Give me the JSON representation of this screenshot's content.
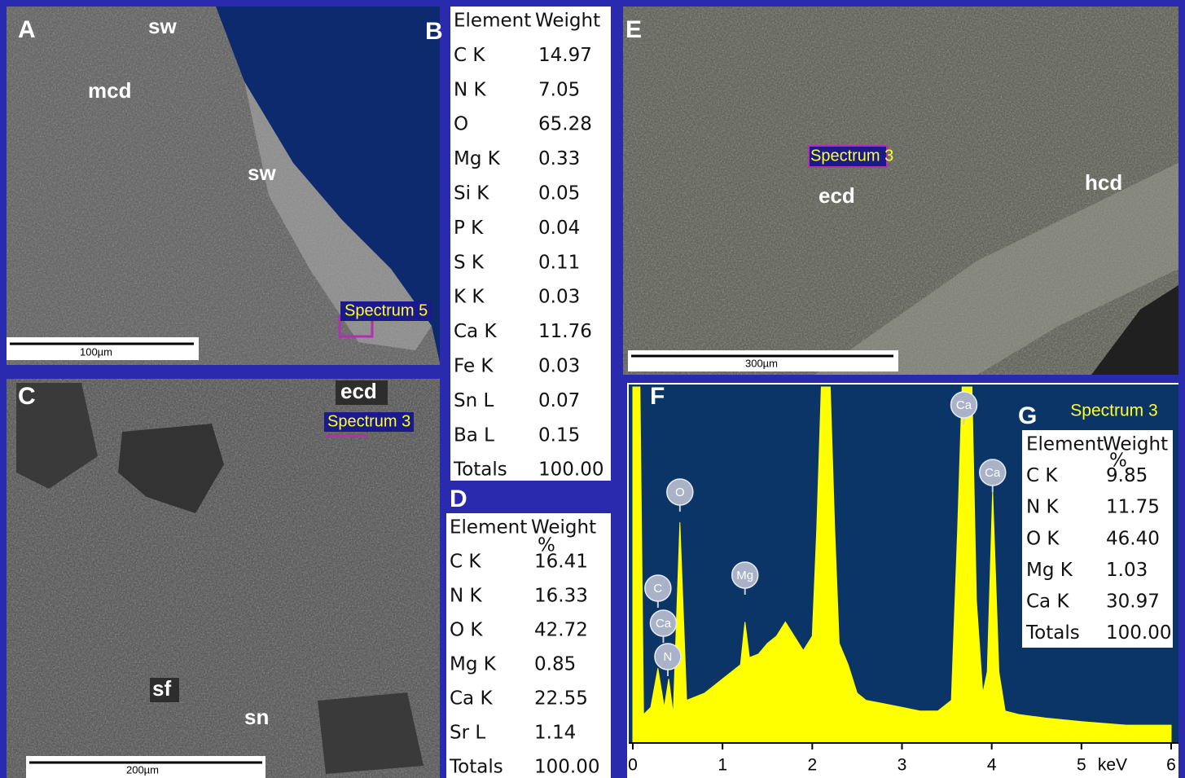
{
  "panels": {
    "a": {
      "label": "A",
      "annotations": [
        "sw",
        "mcd",
        "sw"
      ],
      "spectrum": "Spectrum 5",
      "scale_bar": "100µm"
    },
    "b": {
      "label": "B",
      "table": {
        "header": [
          "Element",
          "Weight"
        ],
        "rows": [
          [
            "C K",
            "14.97"
          ],
          [
            "N K",
            "7.05"
          ],
          [
            "O",
            "65.28"
          ],
          [
            "Mg K",
            "0.33"
          ],
          [
            "Si K",
            "0.05"
          ],
          [
            "P K",
            "0.04"
          ],
          [
            "S K",
            "0.11"
          ],
          [
            "K K",
            "0.03"
          ],
          [
            "Ca K",
            "11.76"
          ],
          [
            "Fe K",
            "0.03"
          ],
          [
            "Sn L",
            "0.07"
          ],
          [
            "Ba L",
            "0.15"
          ],
          [
            "Totals",
            "100.00"
          ]
        ]
      }
    },
    "c": {
      "label": "C",
      "annotations": [
        "ecd",
        "sf",
        "sn"
      ],
      "spectrum": "Spectrum 3",
      "scale_bar": "200µm"
    },
    "d": {
      "label": "D",
      "table": {
        "header": [
          "Element",
          "Weight",
          "%"
        ],
        "rows": [
          [
            "C K",
            "16.41"
          ],
          [
            "N K",
            "16.33"
          ],
          [
            "O K",
            "42.72"
          ],
          [
            "Mg K",
            "0.85"
          ],
          [
            "Ca K",
            "22.55"
          ],
          [
            "Sr L",
            "1.14"
          ],
          [
            "Totals",
            "100.00"
          ]
        ]
      }
    },
    "e": {
      "label": "E",
      "annotations": [
        "ecd",
        "hcd"
      ],
      "spectrum": "Spectrum 3",
      "scale_bar": "300µm"
    },
    "g": {
      "label": "G",
      "table": {
        "header": [
          "Element",
          "Weight",
          "%"
        ],
        "rows": [
          [
            "C K",
            "9.85"
          ],
          [
            "N K",
            "11.75"
          ],
          [
            "O K",
            "46.40"
          ],
          [
            "Mg K",
            "1.03"
          ],
          [
            "Ca K",
            "30.97"
          ],
          [
            "Totals",
            "100.00"
          ]
        ]
      }
    }
  },
  "chart_data": {
    "type": "area",
    "label": "F",
    "spectrum": "Spectrum 3",
    "x_unit": "keV",
    "x": [
      0,
      0.08,
      0.12,
      0.2,
      0.28,
      0.35,
      0.4,
      0.45,
      0.525,
      0.6,
      0.7,
      0.8,
      0.9,
      1.0,
      1.1,
      1.2,
      1.25,
      1.3,
      1.4,
      1.5,
      1.6,
      1.7,
      1.8,
      1.9,
      2.0,
      2.05,
      2.1,
      2.2,
      2.25,
      2.3,
      2.4,
      2.5,
      2.6,
      2.8,
      3.0,
      3.2,
      3.4,
      3.55,
      3.62,
      3.67,
      3.78,
      3.83,
      3.9,
      3.95,
      4.01,
      4.08,
      4.15,
      4.3,
      4.6,
      5.0,
      5.5,
      6.0
    ],
    "series": [
      {
        "color": "#ffff00",
        "values": [
          100,
          100,
          8,
          10,
          21,
          10,
          18,
          8,
          62,
          12,
          13,
          14,
          16,
          18,
          20,
          22,
          34,
          24,
          25,
          28,
          30,
          34,
          30,
          26,
          30,
          60,
          100,
          100,
          60,
          28,
          22,
          14,
          12,
          11,
          10,
          9,
          9,
          12,
          60,
          100,
          100,
          40,
          14,
          20,
          71,
          20,
          9,
          8,
          7,
          6,
          5,
          5
        ]
      }
    ],
    "xlim": [
      0,
      6
    ],
    "ylim": [
      0,
      100
    ],
    "xticks": [
      0,
      1,
      2,
      3,
      4,
      5,
      6
    ],
    "peak_labels": [
      {
        "label": "C",
        "x": 0.28
      },
      {
        "label": "Ca",
        "x": 0.34
      },
      {
        "label": "N",
        "x": 0.39
      },
      {
        "label": "O",
        "x": 0.525
      },
      {
        "label": "Mg",
        "x": 1.25
      },
      {
        "label": "Ca",
        "x": 3.69
      },
      {
        "label": "Ca",
        "x": 4.01
      }
    ]
  }
}
